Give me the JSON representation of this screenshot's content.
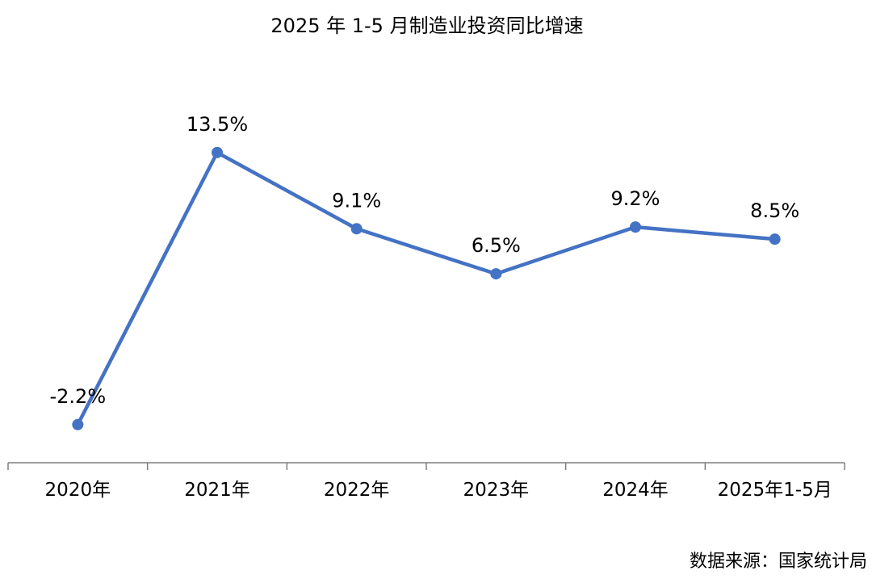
{
  "chart_data": {
    "type": "line",
    "title": "2025 年 1-5 月制造业投资同比增速",
    "categories": [
      "2020年",
      "2021年",
      "2022年",
      "2023年",
      "2024年",
      "2025年1-5月"
    ],
    "series": [
      {
        "values": [
          -2.2,
          13.5,
          9.1,
          6.5,
          9.2,
          8.5
        ],
        "data_labels": [
          "-2.2%",
          "13.5%",
          "9.1%",
          "6.5%",
          "9.2%",
          "8.5%"
        ]
      }
    ],
    "unit": "%",
    "ylim": [
      -4.4,
      22.3
    ],
    "grid": false,
    "legend": "none",
    "line_color": "#4472C4",
    "axis_color": "#7f7f7f",
    "source": "数据来源：国家统计局"
  }
}
